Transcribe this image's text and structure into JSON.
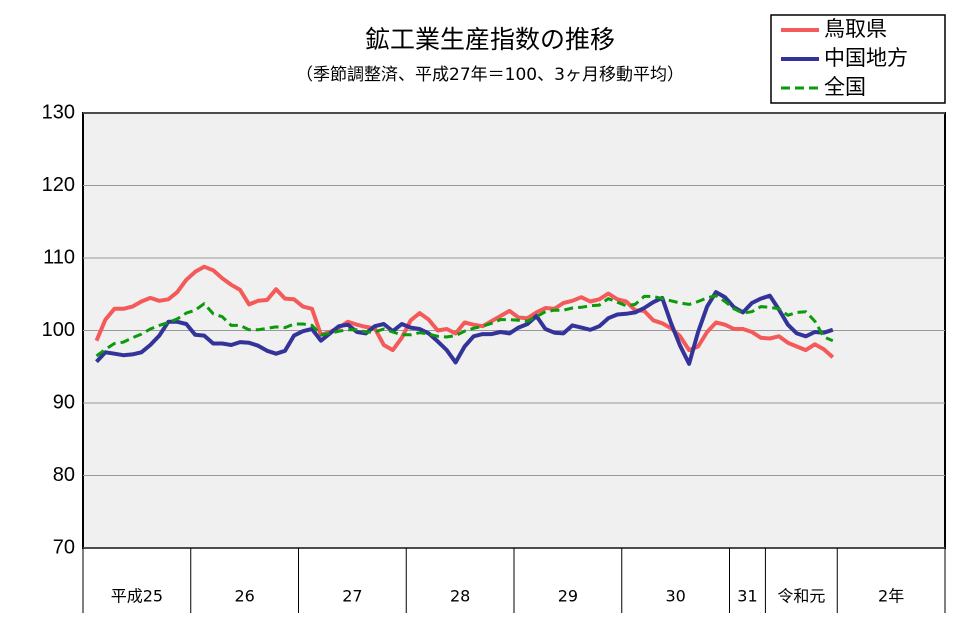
{
  "chart_data": {
    "type": "line",
    "title": "鉱工業生産指数の推移",
    "subtitle": "（季節調整済、平成27年＝100、3ヶ月移動平均）",
    "categories": [
      "平成25",
      null,
      null,
      null,
      null,
      null,
      null,
      null,
      null,
      null,
      null,
      null,
      "26",
      null,
      null,
      null,
      null,
      null,
      null,
      null,
      null,
      null,
      null,
      null,
      "27",
      null,
      null,
      null,
      null,
      null,
      null,
      null,
      null,
      null,
      null,
      null,
      "28",
      null,
      null,
      null,
      null,
      null,
      null,
      null,
      null,
      null,
      null,
      null,
      "29",
      null,
      null,
      null,
      null,
      null,
      null,
      null,
      null,
      null,
      null,
      null,
      "30",
      null,
      null,
      null,
      null,
      null,
      null,
      null,
      null,
      null,
      null,
      null,
      "31",
      null,
      null,
      null,
      "令和元",
      null,
      null,
      null,
      null,
      null,
      null,
      null,
      "2年",
      null,
      null,
      null,
      null,
      null,
      null,
      null,
      null,
      null,
      null,
      null
    ],
    "series": [
      {
        "name": "鳥取県",
        "color": "#f55a5a",
        "dash": false,
        "values": [
          null,
          98.6,
          101.5,
          103,
          103,
          103.3,
          104,
          104.5,
          104.1,
          104.3,
          105.3,
          107,
          108.1,
          108.8,
          108.3,
          107.2,
          106.3,
          105.6,
          103.6,
          104.1,
          104.2,
          105.7,
          104.4,
          104.3,
          103.3,
          103,
          99.4,
          99.8,
          100.4,
          101.2,
          100.8,
          100.5,
          100.3,
          98,
          97.3,
          99,
          101.4,
          102.4,
          101.5,
          100,
          100.2,
          99.6,
          101.1,
          100.8,
          100.6,
          101.3,
          102,
          102.7,
          101.8,
          101.7,
          102.5,
          103.1,
          103,
          103.8,
          104.1,
          104.6,
          104,
          104.3,
          105.1,
          104.3,
          104,
          102.8,
          102.7,
          101.4,
          101,
          100.3,
          99.2,
          97.3,
          97.8,
          99.8,
          101.1,
          100.8,
          100.2,
          100.2,
          99.8,
          99,
          98.9,
          99.2,
          98.3,
          97.8,
          97.3,
          98.1,
          97.4,
          96.3,
          null,
          null,
          null,
          null,
          null,
          null,
          null,
          null,
          null,
          null,
          null,
          null
        ]
      },
      {
        "name": "中国地方",
        "color": "#333399",
        "dash": false,
        "values": [
          null,
          95.7,
          97,
          96.8,
          96.6,
          96.7,
          97,
          98,
          99.3,
          101.2,
          101.2,
          100.9,
          99.4,
          99.3,
          98.2,
          98.2,
          98,
          98.4,
          98.3,
          97.9,
          97.2,
          96.8,
          97.2,
          99.3,
          99.9,
          100.2,
          98.6,
          99.6,
          100.6,
          100.8,
          99.8,
          99.6,
          100.6,
          100.9,
          99.9,
          100.9,
          100.4,
          100.2,
          99.6,
          98.5,
          97.3,
          95.6,
          97.8,
          99.2,
          99.5,
          99.5,
          99.8,
          99.6,
          100.4,
          100.9,
          102,
          100.2,
          99.7,
          99.6,
          100.7,
          100.4,
          100.1,
          100.6,
          101.7,
          102.2,
          102.3,
          102.5,
          103.1,
          103.9,
          104.5,
          101,
          97.9,
          95.4,
          99.8,
          103.3,
          105.3,
          104.6,
          103.2,
          102.5,
          103.8,
          104.4,
          104.8,
          102.9,
          100.8,
          99.6,
          99.2,
          99.8,
          99.7,
          100.1,
          null,
          null,
          null,
          null,
          null,
          null,
          null,
          null,
          null,
          null,
          null,
          null
        ]
      },
      {
        "name": "全国",
        "color": "#0a9a0a",
        "dash": true,
        "values": [
          null,
          96.5,
          97.4,
          98.2,
          98.4,
          99,
          99.5,
          100.2,
          100.7,
          101.1,
          101.6,
          102.4,
          102.8,
          103.7,
          102.3,
          101.9,
          100.7,
          100.7,
          100.1,
          100.1,
          100.3,
          100.5,
          100.4,
          100.9,
          100.9,
          100.7,
          99.4,
          99.6,
          99.9,
          100.1,
          100.1,
          99.8,
          99.8,
          100.2,
          99.8,
          99.4,
          99.4,
          99.7,
          99.5,
          99.2,
          99.1,
          99.3,
          99.9,
          100.3,
          100.6,
          101,
          101.5,
          101.5,
          101.4,
          101.3,
          101.9,
          102.6,
          102.8,
          102.8,
          103.1,
          103.2,
          103.4,
          103.5,
          104.4,
          103.9,
          103.4,
          103.6,
          104.7,
          104.7,
          104.4,
          104.1,
          103.8,
          103.6,
          104,
          104.5,
          104.8,
          104,
          103,
          102.4,
          102.6,
          103.3,
          103.2,
          103,
          102.1,
          102.5,
          102.6,
          101.3,
          99.1,
          98.6,
          null,
          null,
          null,
          null,
          null,
          null,
          null,
          null,
          null,
          null,
          null,
          null
        ]
      }
    ],
    "ylim": [
      70,
      130
    ],
    "yticks": [
      70,
      80,
      90,
      100,
      110,
      120,
      130
    ],
    "grid": true
  }
}
